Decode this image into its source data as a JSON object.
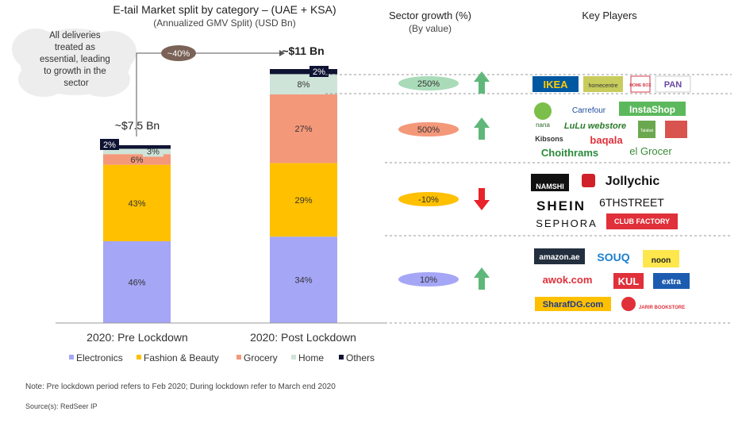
{
  "chart_data": {
    "type": "bar",
    "stacked": true,
    "title": "E-tail Market split by category – (UAE + KSA)",
    "subtitle": "(Annualized GMV Split) (USD Bn)",
    "categories": [
      "2020: Pre Lockdown",
      "2020: Post Lockdown"
    ],
    "totals": [
      "~$7.5 Bn",
      "~$11 Bn"
    ],
    "growth_label": "~40%",
    "series": [
      {
        "name": "Electronics",
        "color": "#a5a6f6",
        "values": [
          46,
          34
        ]
      },
      {
        "name": "Fashion & Beauty",
        "color": "#ffc000",
        "values": [
          43,
          29
        ]
      },
      {
        "name": "Grocery",
        "color": "#f4987a",
        "values": [
          6,
          27
        ]
      },
      {
        "name": "Home",
        "color": "#cfe4d8",
        "values": [
          3,
          8
        ]
      },
      {
        "name": "Others",
        "color": "#0f1333",
        "values": [
          2,
          2
        ]
      }
    ],
    "value_labels": [
      [
        "46%",
        "43%",
        "6%",
        "3%",
        "2%"
      ],
      [
        "34%",
        "29%",
        "27%",
        "8%",
        "2%"
      ]
    ],
    "legend_position": "bottom",
    "cloud_text": [
      "All deliveries",
      "treated as",
      "essential, leading",
      "to growth in the",
      "sector"
    ],
    "sector_growth": {
      "header": "Sector growth (%)",
      "subheader": "(By value)",
      "rows": [
        {
          "label": "250%",
          "direction": "up",
          "color": "#a9dbb9"
        },
        {
          "label": "500%",
          "direction": "up",
          "color": "#f4987a"
        },
        {
          "label": "-10%",
          "direction": "down",
          "color": "#ffc000"
        },
        {
          "label": "10%",
          "direction": "up",
          "color": "#a5a6f6"
        }
      ]
    },
    "key_players": {
      "header": "Key Players",
      "groups": [
        [
          "IKEA",
          "homecentre",
          "HOME BOX",
          "PAN"
        ],
        [
          "nana",
          "Carrefour",
          "InstaShop",
          "LuLu webstore",
          "Talabat",
          "Kibsons",
          "baqala",
          "Choithrams",
          "el Grocer"
        ],
        [
          "NAMSHI",
          "Jollychic",
          "SHEIN",
          "6THSTREET",
          "SEPHORA",
          "CLUB FACTORY"
        ],
        [
          "amazon.ae",
          "SOUQ",
          "noon",
          "awok.com",
          "KUL",
          "extra",
          "SharafDG.com",
          "JARIR BOOKSTORE"
        ]
      ]
    }
  },
  "note": "Note: Pre lockdown period refers to Feb 2020; During lockdown refer to March end 2020",
  "source": "Source(s): RedSeer IP"
}
